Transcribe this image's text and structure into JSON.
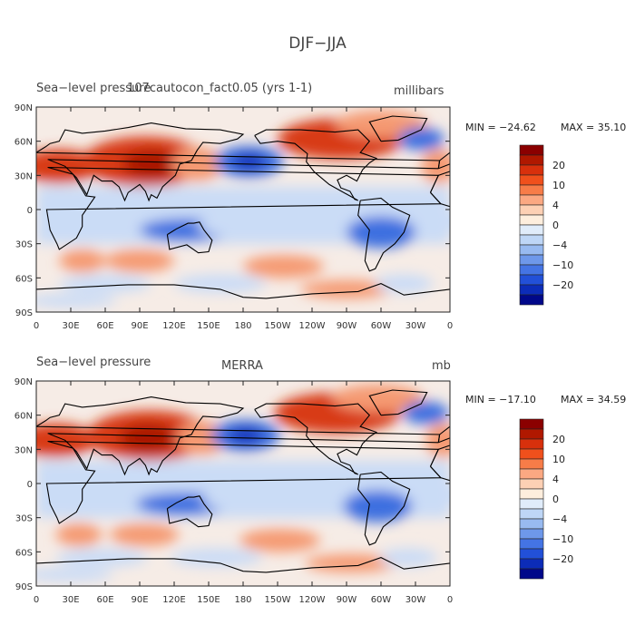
{
  "title": "DJF−JJA",
  "panels": [
    {
      "left_title": "Sea−level pressure",
      "center_title": "107cautocon_fact0.05 (yrs 1-1)",
      "units": "millibars",
      "min_label": "MIN = −24.62",
      "max_label": "MAX =  35.10"
    },
    {
      "left_title": "Sea−level pressure",
      "center_title": "MERRA",
      "units": "mb",
      "min_label": "MIN = −17.10",
      "max_label": "MAX =  34.59"
    }
  ],
  "lat_ticks": [
    "90N",
    "60N",
    "30N",
    "0",
    "30S",
    "60S",
    "90S"
  ],
  "lon_ticks": [
    "0",
    "30E",
    "60E",
    "90E",
    "120E",
    "150E",
    "180",
    "150W",
    "120W",
    "90W",
    "60W",
    "30W",
    "0"
  ],
  "colorbar": {
    "labels": [
      "20",
      "10",
      "4",
      "0",
      "−4",
      "−10",
      "−20"
    ],
    "colors": [
      "#8b0000",
      "#b01800",
      "#d8300c",
      "#f0501c",
      "#f77c48",
      "#fba882",
      "#fdd0b4",
      "#feeedd",
      "#e0ecfa",
      "#bed6f6",
      "#98baf0",
      "#6e98ea",
      "#4474e4",
      "#2250d8",
      "#0c2cb8",
      "#00088a"
    ]
  },
  "colors": {
    "high": "#d83a14",
    "high_strong": "#a81800",
    "mid_high": "#f59a72",
    "light_high": "#fdd6c0",
    "neutral": "#f6ece6",
    "light_low": "#cadcf6",
    "mid_low": "#8fb2ee",
    "low": "#3d6fe0",
    "low_strong": "#0f2fb8",
    "coast": "#000000"
  }
}
